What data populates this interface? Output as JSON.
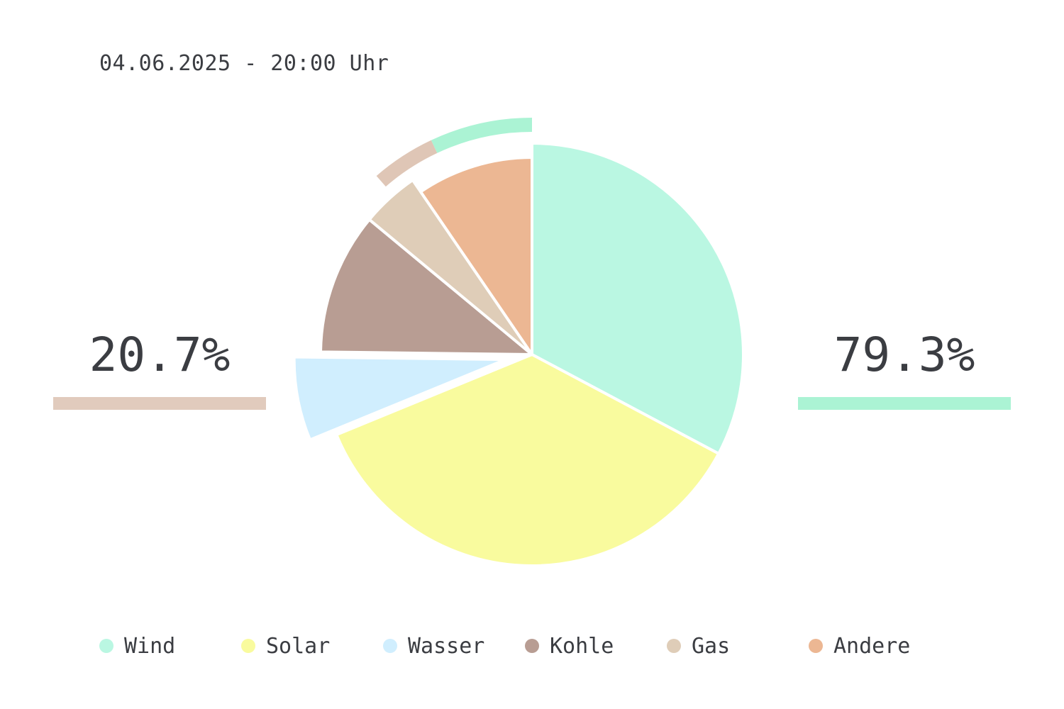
{
  "header": {
    "timestamp": "04.06.2025 - 20:00 Uhr"
  },
  "chart_data": {
    "type": "pie",
    "categories": [
      "Wind",
      "Solar",
      "Wasser",
      "Kohle",
      "Gas",
      "Andere"
    ],
    "values": [
      33.3,
      36.6,
      6.5,
      11.0,
      4.5,
      9.7
    ],
    "unit": "%",
    "exploded": [
      "Wasser"
    ],
    "legend_position": "bottom",
    "colors": [
      "#baf7e2",
      "#f9fb9e",
      "#d0eefe",
      "#b89d93",
      "#dfcdb8",
      "#ecb793"
    ]
  },
  "summary": {
    "left": {
      "value": "20.7%",
      "color": "#e1cbbd"
    },
    "right": {
      "value": "79.3%",
      "color": "#abf3d4"
    }
  },
  "outer_ring": {
    "segments": [
      {
        "fraction": 0.07,
        "color": "#abf3d4"
      },
      {
        "fraction": 0.044,
        "color": "#dfc6b6"
      }
    ]
  }
}
